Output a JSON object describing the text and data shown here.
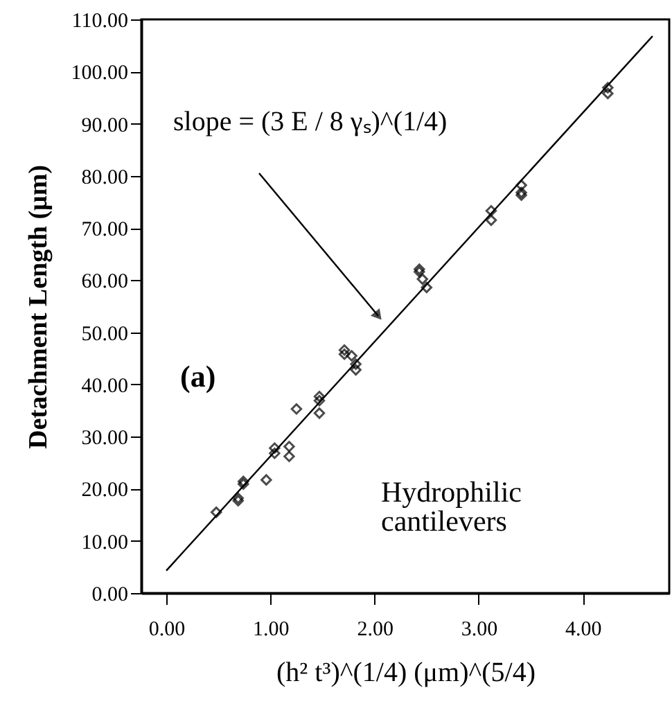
{
  "chart_data": {
    "type": "scatter",
    "xlabel": "(h² t³)^(1/4)        (μm)^(5/4)",
    "ylabel": "Detachment Length (μm)",
    "marker": "diamond",
    "grid": false,
    "xlim": [
      -0.24,
      4.83
    ],
    "ylim": [
      0,
      110
    ],
    "xticks": [
      {
        "value": 0,
        "label": "0.00"
      },
      {
        "value": 1,
        "label": "1.00"
      },
      {
        "value": 2,
        "label": "2.00"
      },
      {
        "value": 3,
        "label": "3.00"
      },
      {
        "value": 4,
        "label": "4.00"
      }
    ],
    "yticks": [
      {
        "value": 0,
        "label": "0.00"
      },
      {
        "value": 10,
        "label": "10.00"
      },
      {
        "value": 20,
        "label": "20.00"
      },
      {
        "value": 30,
        "label": "30.00"
      },
      {
        "value": 40,
        "label": "40.00"
      },
      {
        "value": 50,
        "label": "50.00"
      },
      {
        "value": 60,
        "label": "60.00"
      },
      {
        "value": 70,
        "label": "70.00"
      },
      {
        "value": 80,
        "label": "80.00"
      },
      {
        "value": 90,
        "label": "90.00"
      },
      {
        "value": 100,
        "label": "100.00"
      },
      {
        "value": 110,
        "label": "110.00"
      }
    ],
    "series": [
      {
        "color": "#000000",
        "x": [
          0.48,
          0.69,
          0.69,
          0.74,
          0.74,
          0.96,
          1.04,
          1.04,
          1.18,
          1.18,
          1.25,
          1.47,
          1.47,
          1.47,
          1.71,
          1.71,
          1.78,
          1.82,
          1.82,
          2.43,
          2.43,
          2.46,
          2.5,
          3.12,
          3.12,
          3.41,
          3.41,
          3.41,
          4.24,
          4.24
        ],
        "values": [
          15.5,
          17.7,
          18.2,
          20.9,
          21.4,
          21.7,
          27.8,
          26.8,
          26.2,
          28.1,
          35.3,
          36.9,
          37.7,
          34.5,
          46.6,
          45.8,
          45.5,
          43.9,
          42.8,
          62.1,
          61.6,
          60.2,
          58.6,
          73.3,
          71.5,
          78.2,
          76.8,
          76.3,
          96.9,
          95.8
        ]
      },
      {
        "type": "line",
        "color": "#000000",
        "line_style": "solid",
        "marker": "none",
        "x": [
          0,
          4.67
        ],
        "values": [
          4.3,
          106.8
        ]
      }
    ],
    "annotations": [
      "slope = (3 E / 8 γₛ)^(1/4)",
      "(a)",
      "Hydrophilic\ncantilevers"
    ]
  }
}
